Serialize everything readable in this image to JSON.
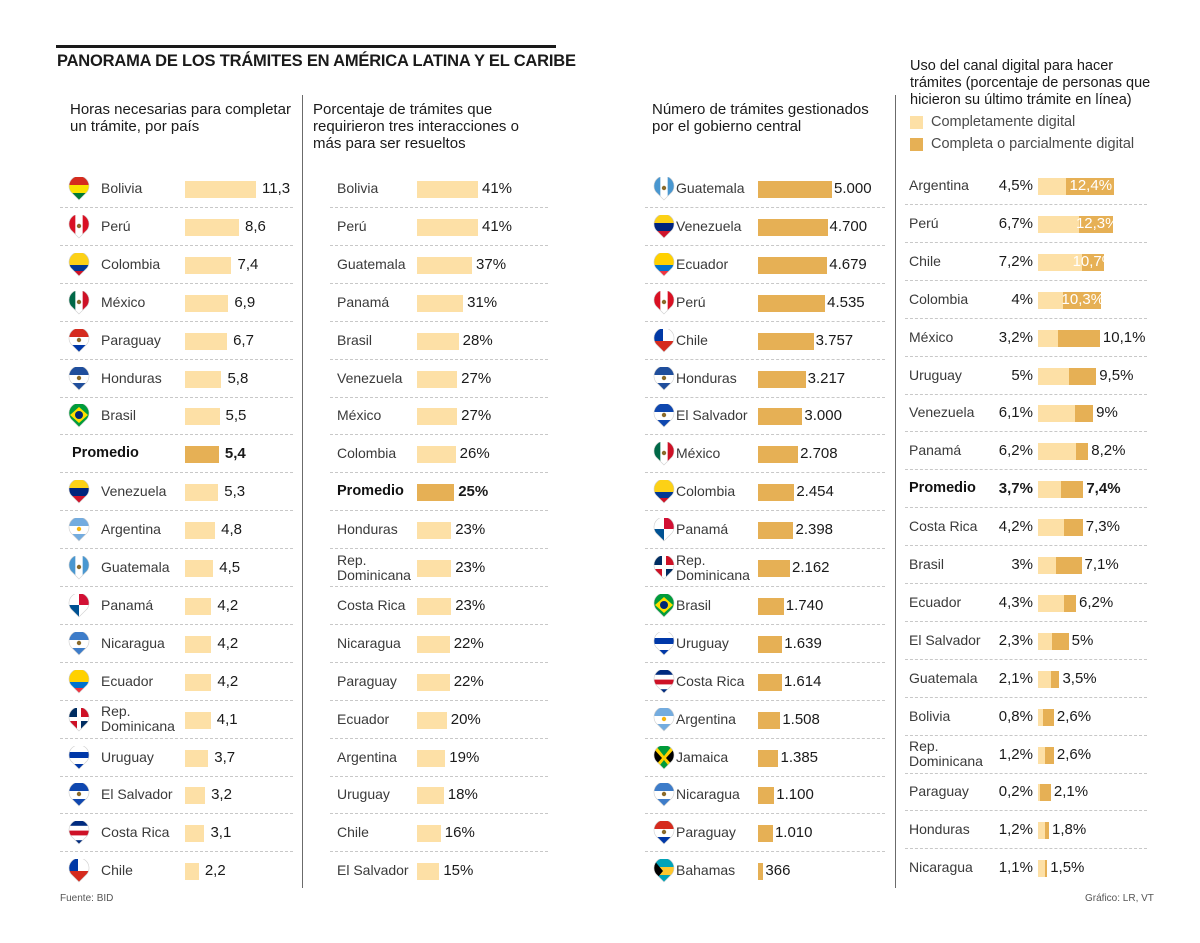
{
  "title": "PANORAMA DE LOS TRÁMITES EN AMÉRICA LATINA Y EL CARIBE",
  "source": "Fuente: BID",
  "credit": "Gráfico: LR, VT",
  "colors": {
    "light": "#fde0a6",
    "dark": "#e6b055",
    "text": "#1a1a1a"
  },
  "chart_data": [
    {
      "type": "bar",
      "orientation": "horizontal",
      "title": "Horas necesarias para completar un trámite, por país",
      "title_lines": [
        "Horas necesarias para completar",
        "un trámite, por país"
      ],
      "unit": "horas",
      "max": 11.3,
      "rows": [
        {
          "label": "Bolivia",
          "flag": "bolivia",
          "value": 11.3,
          "display": "11,3"
        },
        {
          "label": "Perú",
          "flag": "peru",
          "value": 8.6,
          "display": "8,6"
        },
        {
          "label": "Colombia",
          "flag": "colombia",
          "value": 7.4,
          "display": "7,4"
        },
        {
          "label": "México",
          "flag": "mexico",
          "value": 6.9,
          "display": "6,9"
        },
        {
          "label": "Paraguay",
          "flag": "paraguay",
          "value": 6.7,
          "display": "6,7"
        },
        {
          "label": "Honduras",
          "flag": "honduras",
          "value": 5.8,
          "display": "5,8"
        },
        {
          "label": "Brasil",
          "flag": "brasil",
          "value": 5.5,
          "display": "5,5"
        },
        {
          "label": "Promedio",
          "flag": null,
          "value": 5.4,
          "display": "5,4",
          "average": true
        },
        {
          "label": "Venezuela",
          "flag": "venezuela",
          "value": 5.3,
          "display": "5,3"
        },
        {
          "label": "Argentina",
          "flag": "argentina",
          "value": 4.8,
          "display": "4,8"
        },
        {
          "label": "Guatemala",
          "flag": "guatemala",
          "value": 4.5,
          "display": "4,5"
        },
        {
          "label": "Panamá",
          "flag": "panama",
          "value": 4.2,
          "display": "4,2"
        },
        {
          "label": "Nicaragua",
          "flag": "nicaragua",
          "value": 4.2,
          "display": "4,2"
        },
        {
          "label": "Ecuador",
          "flag": "ecuador",
          "value": 4.2,
          "display": "4,2"
        },
        {
          "label": "Rep. Dominicana",
          "label_lines": [
            "Rep.",
            "Dominicana"
          ],
          "flag": "repdominicana",
          "value": 4.1,
          "display": "4,1"
        },
        {
          "label": "Uruguay",
          "flag": "uruguay",
          "value": 3.7,
          "display": "3,7"
        },
        {
          "label": "El Salvador",
          "flag": "elsalvador",
          "value": 3.2,
          "display": "3,2"
        },
        {
          "label": "Costa Rica",
          "flag": "costarica",
          "value": 3.1,
          "display": "3,1"
        },
        {
          "label": "Chile",
          "flag": "chile",
          "value": 2.2,
          "display": "2,2"
        }
      ]
    },
    {
      "type": "bar",
      "orientation": "horizontal",
      "title": "Porcentaje de trámites que requirieron tres interacciones o más para ser resueltos",
      "title_lines": [
        "Porcentaje de trámites que",
        "requirieron tres interacciones o",
        "más para ser resueltos"
      ],
      "unit": "%",
      "max": 41,
      "rows": [
        {
          "label": "Bolivia",
          "value": 41,
          "display": "41%"
        },
        {
          "label": "Perú",
          "value": 41,
          "display": "41%"
        },
        {
          "label": "Guatemala",
          "value": 37,
          "display": "37%"
        },
        {
          "label": "Panamá",
          "value": 31,
          "display": "31%"
        },
        {
          "label": "Brasil",
          "value": 28,
          "display": "28%"
        },
        {
          "label": "Venezuela",
          "value": 27,
          "display": "27%"
        },
        {
          "label": "México",
          "value": 27,
          "display": "27%"
        },
        {
          "label": "Colombia",
          "value": 26,
          "display": "26%"
        },
        {
          "label": "Promedio",
          "value": 25,
          "display": "25%",
          "average": true
        },
        {
          "label": "Honduras",
          "value": 23,
          "display": "23%"
        },
        {
          "label": "Rep. Dominicana",
          "label_lines": [
            "Rep.",
            "Dominicana"
          ],
          "value": 23,
          "display": "23%"
        },
        {
          "label": "Costa Rica",
          "value": 23,
          "display": "23%"
        },
        {
          "label": "Nicaragua",
          "value": 22,
          "display": "22%"
        },
        {
          "label": "Paraguay",
          "value": 22,
          "display": "22%"
        },
        {
          "label": "Ecuador",
          "value": 20,
          "display": "20%"
        },
        {
          "label": "Argentina",
          "value": 19,
          "display": "19%"
        },
        {
          "label": "Uruguay",
          "value": 18,
          "display": "18%"
        },
        {
          "label": "Chile",
          "value": 16,
          "display": "16%"
        },
        {
          "label": "El Salvador",
          "value": 15,
          "display": "15%"
        }
      ]
    },
    {
      "type": "bar",
      "orientation": "horizontal",
      "title": "Número de trámites gestionados por el gobierno central",
      "title_lines": [
        "Número de trámites gestionados",
        "por el gobierno central"
      ],
      "unit": "trámites",
      "max": 5000,
      "rows": [
        {
          "label": "Guatemala",
          "flag": "guatemala",
          "value": 5000,
          "display": "5.000"
        },
        {
          "label": "Venezuela",
          "flag": "venezuela",
          "value": 4700,
          "display": "4.700"
        },
        {
          "label": "Ecuador",
          "flag": "ecuador",
          "value": 4679,
          "display": "4.679"
        },
        {
          "label": "Perú",
          "flag": "peru",
          "value": 4535,
          "display": "4.535"
        },
        {
          "label": "Chile",
          "flag": "chile",
          "value": 3757,
          "display": "3.757"
        },
        {
          "label": "Honduras",
          "flag": "honduras",
          "value": 3217,
          "display": "3.217"
        },
        {
          "label": "El Salvador",
          "flag": "elsalvador",
          "value": 3000,
          "display": "3.000"
        },
        {
          "label": "México",
          "flag": "mexico",
          "value": 2708,
          "display": "2.708"
        },
        {
          "label": "Colombia",
          "flag": "colombia",
          "value": 2454,
          "display": "2.454"
        },
        {
          "label": "Panamá",
          "flag": "panama",
          "value": 2398,
          "display": "2.398"
        },
        {
          "label": "Rep. Dominicana",
          "label_lines": [
            "Rep.",
            "Dominicana"
          ],
          "flag": "repdominicana",
          "value": 2162,
          "display": "2.162"
        },
        {
          "label": "Brasil",
          "flag": "brasil",
          "value": 1740,
          "display": "1.740"
        },
        {
          "label": "Uruguay",
          "flag": "uruguay",
          "value": 1639,
          "display": "1.639"
        },
        {
          "label": "Costa Rica",
          "flag": "costarica",
          "value": 1614,
          "display": "1.614"
        },
        {
          "label": "Argentina",
          "flag": "argentina",
          "value": 1508,
          "display": "1.508"
        },
        {
          "label": "Jamaica",
          "flag": "jamaica",
          "value": 1385,
          "display": "1.385"
        },
        {
          "label": "Nicaragua",
          "flag": "nicaragua",
          "value": 1100,
          "display": "1.100"
        },
        {
          "label": "Paraguay",
          "flag": "paraguay",
          "value": 1010,
          "display": "1.010"
        },
        {
          "label": "Bahamas",
          "flag": "bahamas",
          "value": 366,
          "display": "366"
        }
      ]
    },
    {
      "type": "bar",
      "orientation": "horizontal",
      "stacked_overlay": true,
      "title": "Uso del canal digital para hacer trámites (porcentaje de personas que hicieron su último trámite en línea)",
      "title_lines": [
        "Uso del canal digital para hacer",
        "trámites (porcentaje  de personas que",
        "hicieron su último trámite en línea)"
      ],
      "legend": [
        {
          "label": "Completamente digital",
          "color": "#fde0a6"
        },
        {
          "label": "Completa o parcialmente digital",
          "color": "#e6b055"
        }
      ],
      "unit": "%",
      "max": 12.4,
      "rows": [
        {
          "label": "Argentina",
          "full": 4.5,
          "full_display": "4,5%",
          "partial": 12.4,
          "partial_display": "12,4%",
          "inside": true
        },
        {
          "label": "Perú",
          "full": 6.7,
          "full_display": "6,7%",
          "partial": 12.3,
          "partial_display": "12,3%",
          "inside": true
        },
        {
          "label": "Chile",
          "full": 7.2,
          "full_display": "7,2%",
          "partial": 10.7,
          "partial_display": "10,7%",
          "inside": true
        },
        {
          "label": "Colombia",
          "full": 4,
          "full_display": "4%",
          "partial": 10.3,
          "partial_display": "10,3%",
          "inside": true
        },
        {
          "label": "México",
          "full": 3.2,
          "full_display": "3,2%",
          "partial": 10.1,
          "partial_display": "10,1%"
        },
        {
          "label": "Uruguay",
          "full": 5,
          "full_display": "5%",
          "partial": 9.5,
          "partial_display": "9,5%"
        },
        {
          "label": "Venezuela",
          "full": 6.1,
          "full_display": "6,1%",
          "partial": 9,
          "partial_display": "9%"
        },
        {
          "label": "Panamá",
          "full": 6.2,
          "full_display": "6,2%",
          "partial": 8.2,
          "partial_display": "8,2%"
        },
        {
          "label": "Promedio",
          "full": 3.7,
          "full_display": "3,7%",
          "partial": 7.4,
          "partial_display": "7,4%",
          "average": true
        },
        {
          "label": "Costa Rica",
          "full": 4.2,
          "full_display": "4,2%",
          "partial": 7.3,
          "partial_display": "7,3%"
        },
        {
          "label": "Brasil",
          "full": 3,
          "full_display": "3%",
          "partial": 7.1,
          "partial_display": "7,1%"
        },
        {
          "label": "Ecuador",
          "full": 4.3,
          "full_display": "4,3%",
          "partial": 6.2,
          "partial_display": "6,2%"
        },
        {
          "label": "El Salvador",
          "full": 2.3,
          "full_display": "2,3%",
          "partial": 5,
          "partial_display": "5%"
        },
        {
          "label": "Guatemala",
          "full": 2.1,
          "full_display": "2,1%",
          "partial": 3.5,
          "partial_display": "3,5%"
        },
        {
          "label": "Bolivia",
          "full": 0.8,
          "full_display": "0,8%",
          "partial": 2.6,
          "partial_display": "2,6%"
        },
        {
          "label": "Rep. Dominicana",
          "label_lines": [
            "Rep.",
            "Dominicana"
          ],
          "full": 1.2,
          "full_display": "1,2%",
          "partial": 2.6,
          "partial_display": "2,6%"
        },
        {
          "label": "Paraguay",
          "full": 0.2,
          "full_display": "0,2%",
          "partial": 2.1,
          "partial_display": "2,1%"
        },
        {
          "label": "Honduras",
          "full": 1.2,
          "full_display": "1,2%",
          "partial": 1.8,
          "partial_display": "1,8%"
        },
        {
          "label": "Nicaragua",
          "full": 1.1,
          "full_display": "1,1%",
          "partial": 1.5,
          "partial_display": "1,5%"
        }
      ]
    }
  ]
}
